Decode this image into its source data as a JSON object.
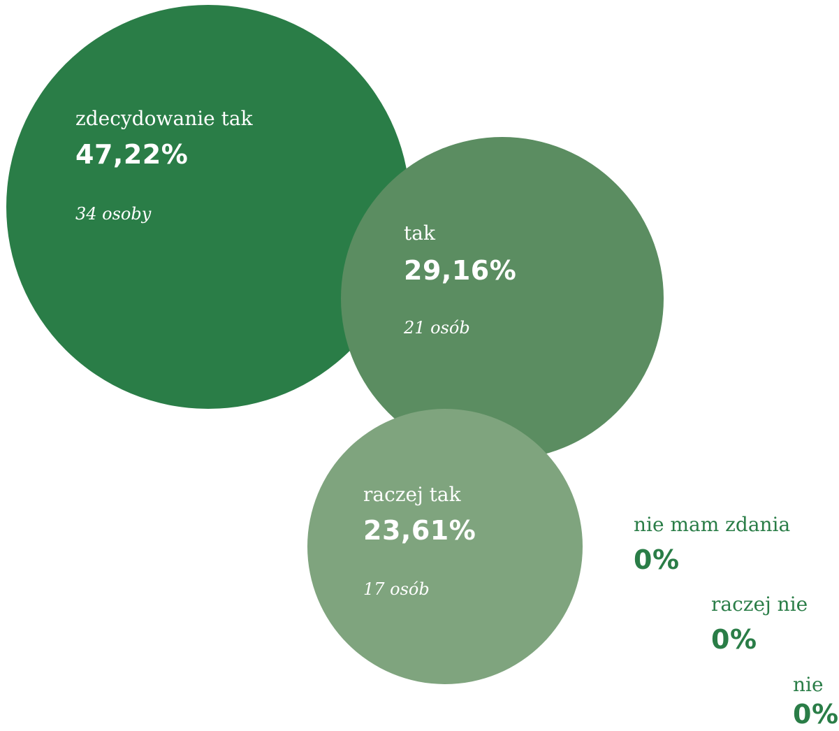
{
  "chart_data": {
    "type": "bubble",
    "title": "",
    "series": [
      {
        "category": "zdecydowanie tak",
        "percent_label": "47,22%",
        "value": 47.22,
        "count_label": "34 osoby",
        "count": 34,
        "color": "#2a7d47"
      },
      {
        "category": "tak",
        "percent_label": "29,16%",
        "value": 29.16,
        "count_label": "21 osób",
        "count": 21,
        "color": "#5b8d61"
      },
      {
        "category": "raczej tak",
        "percent_label": "23,61%",
        "value": 23.61,
        "count_label": "17 osób",
        "count": 17,
        "color": "#7fa47e"
      },
      {
        "category": "nie mam zdania",
        "percent_label": "0%",
        "value": 0,
        "color": "#2a7d47"
      },
      {
        "category": "raczej nie",
        "percent_label": "0%",
        "value": 0,
        "color": "#2a7d47"
      },
      {
        "category": "nie",
        "percent_label": "0%",
        "value": 0,
        "color": "#2a7d47"
      }
    ]
  }
}
